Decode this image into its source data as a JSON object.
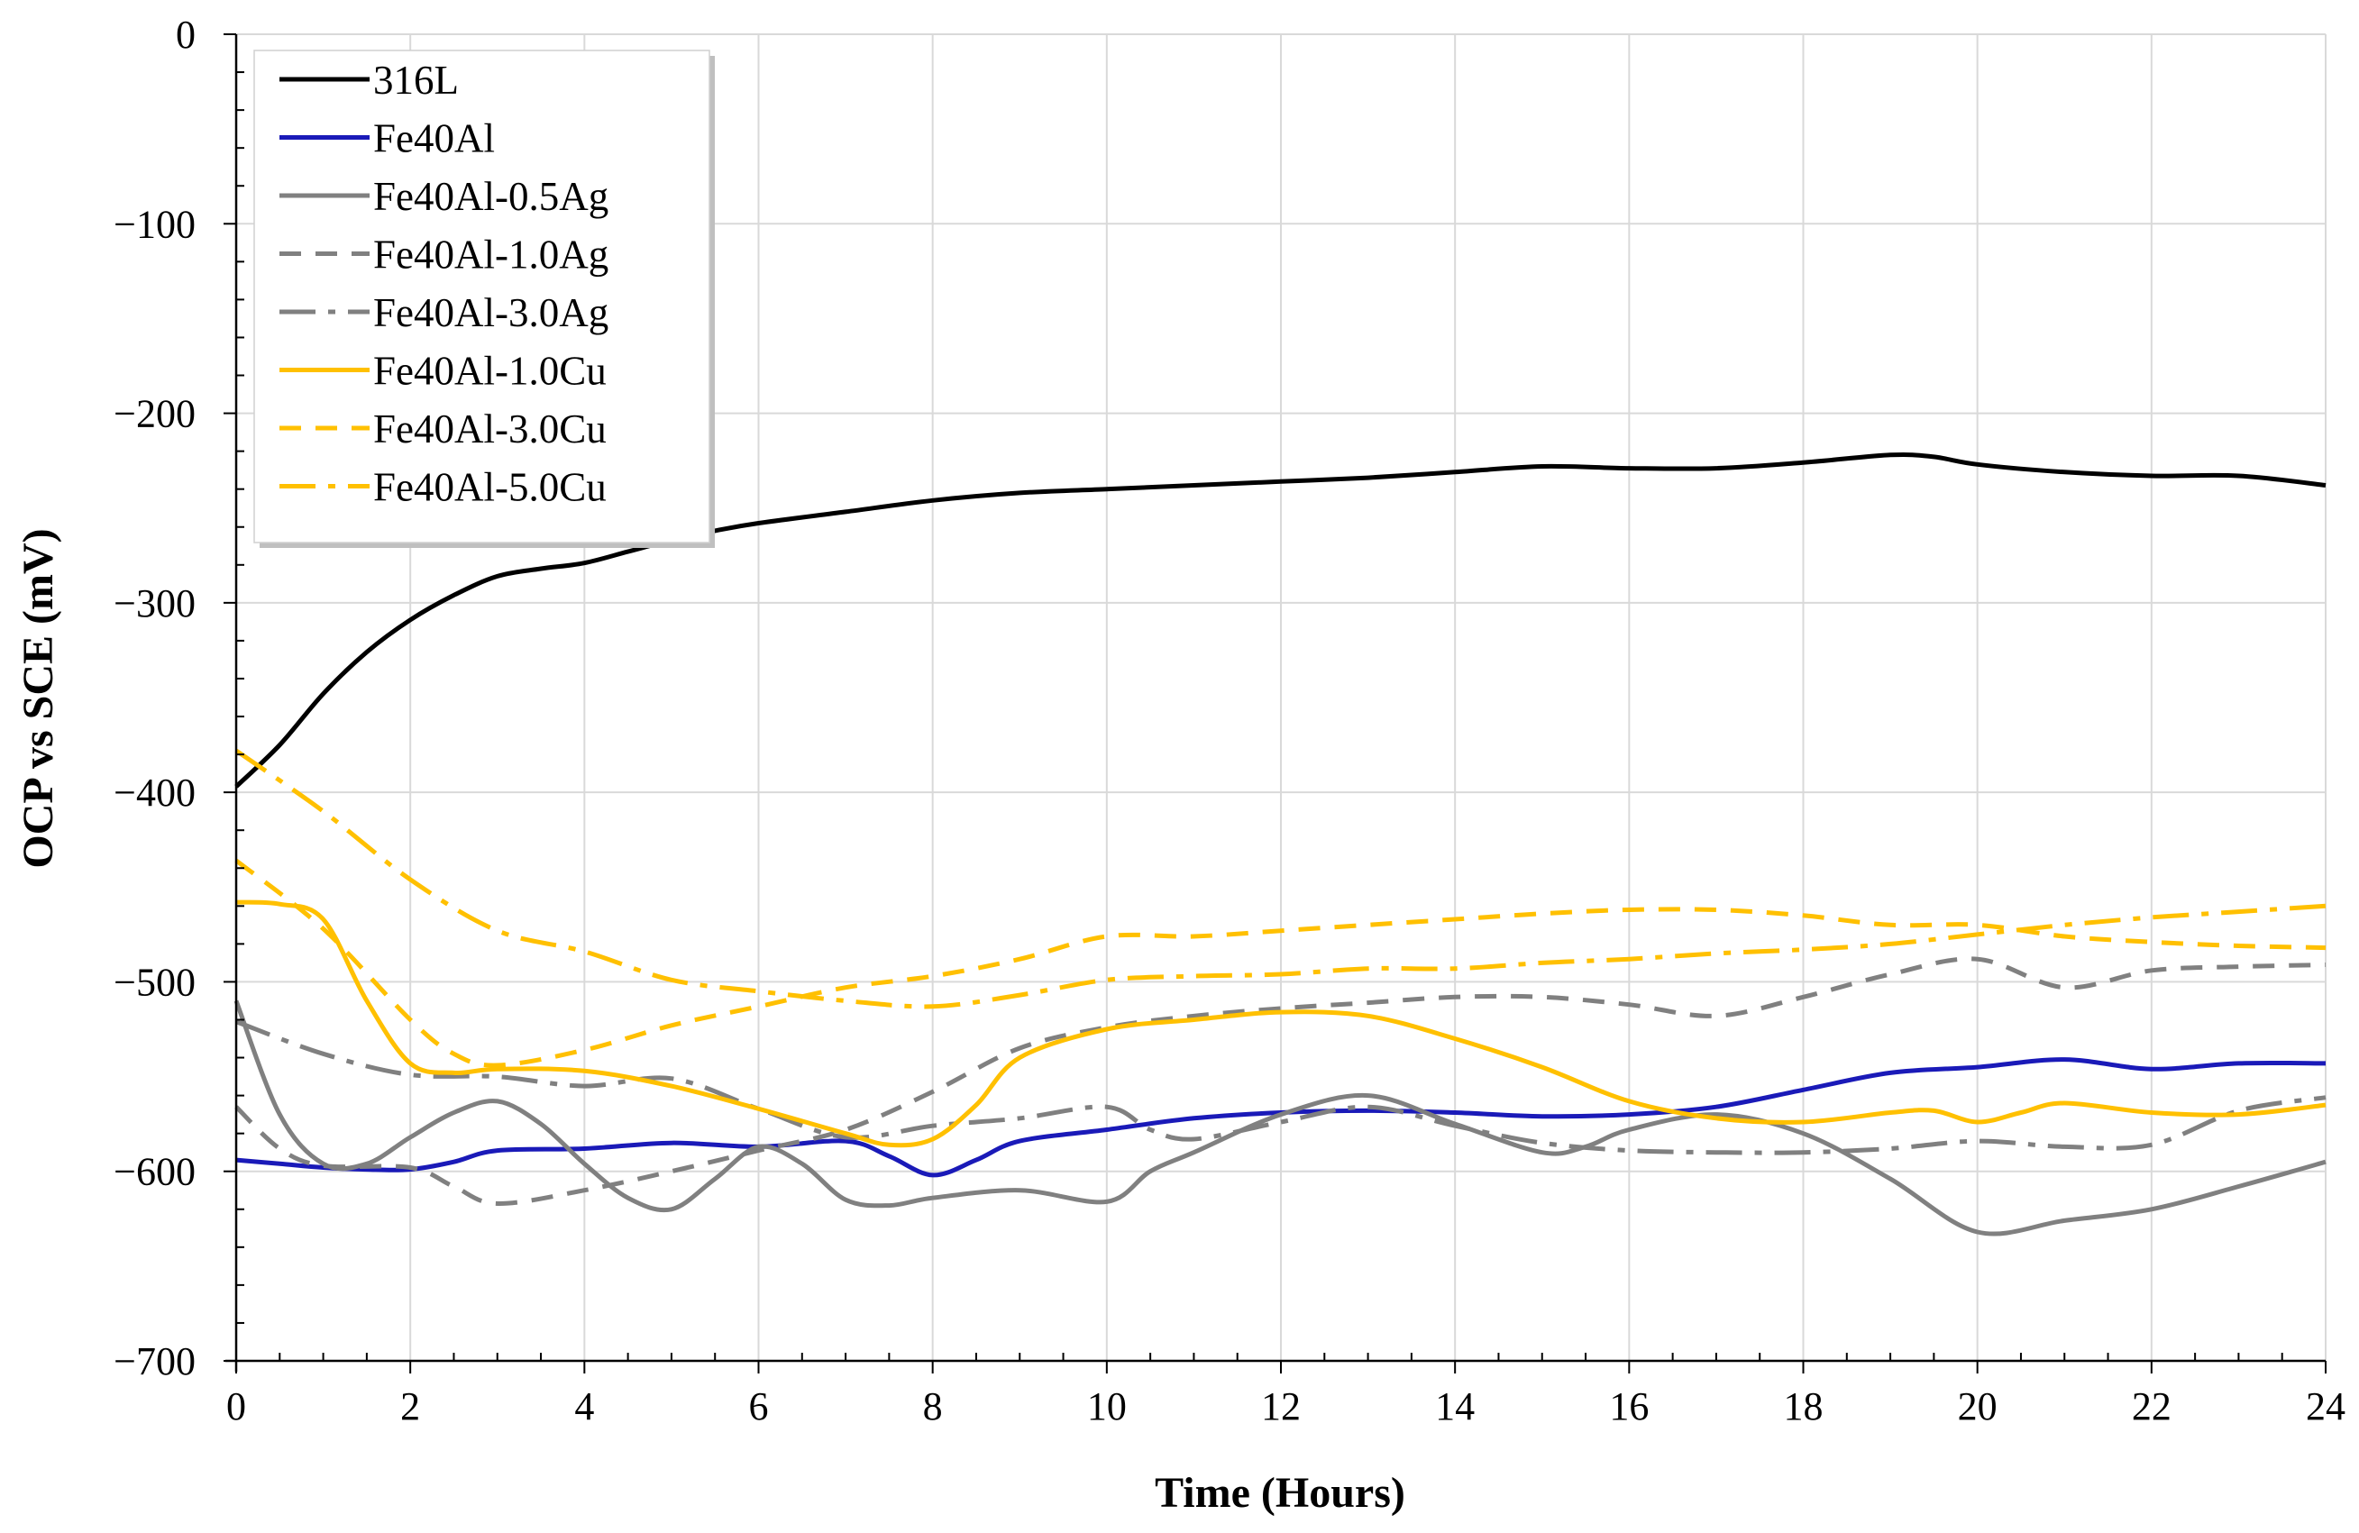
{
  "chart_data": {
    "type": "line",
    "title": "",
    "xlabel": "Time (Hours)",
    "ylabel": "OCP vs SCE (mV)",
    "xlim": [
      0,
      24
    ],
    "ylim": [
      -700,
      0
    ],
    "x_ticks": [
      0,
      2,
      4,
      6,
      8,
      10,
      12,
      14,
      16,
      18,
      20,
      22,
      24
    ],
    "y_ticks": [
      0,
      -100,
      -200,
      -300,
      -400,
      -500,
      -600,
      -700
    ],
    "x_tick_labels": [
      "0",
      "2",
      "4",
      "6",
      "8",
      "10",
      "12",
      "14",
      "16",
      "18",
      "20",
      "22",
      "24"
    ],
    "y_tick_labels": [
      "0",
      "−100",
      "−200",
      "−300",
      "−400",
      "−500",
      "−600",
      "−700"
    ],
    "grid": true,
    "legend_position": "top-left",
    "series": [
      {
        "name": "316L",
        "color": "#000000",
        "dash": "solid",
        "points": [
          [
            0,
            -397
          ],
          [
            0.5,
            -375
          ],
          [
            1,
            -348
          ],
          [
            1.5,
            -326
          ],
          [
            2,
            -309
          ],
          [
            2.5,
            -296
          ],
          [
            3,
            -286
          ],
          [
            3.5,
            -282
          ],
          [
            4,
            -279
          ],
          [
            4.5,
            -273
          ],
          [
            5,
            -267
          ],
          [
            5.5,
            -262
          ],
          [
            6,
            -258
          ],
          [
            7,
            -252
          ],
          [
            8,
            -246
          ],
          [
            9,
            -242
          ],
          [
            10,
            -240
          ],
          [
            11,
            -238
          ],
          [
            12,
            -236
          ],
          [
            13,
            -234
          ],
          [
            14,
            -231
          ],
          [
            15,
            -228
          ],
          [
            16,
            -229
          ],
          [
            17,
            -229
          ],
          [
            18,
            -226
          ],
          [
            19,
            -222
          ],
          [
            19.5,
            -223
          ],
          [
            20,
            -227
          ],
          [
            21,
            -231
          ],
          [
            22,
            -233
          ],
          [
            23,
            -233
          ],
          [
            24,
            -238
          ]
        ]
      },
      {
        "name": "Fe40Al",
        "color": "#1a1ab8",
        "dash": "solid",
        "points": [
          [
            0,
            -594
          ],
          [
            0.5,
            -596
          ],
          [
            1,
            -598
          ],
          [
            1.5,
            -599
          ],
          [
            2,
            -599
          ],
          [
            2.5,
            -595
          ],
          [
            3,
            -589
          ],
          [
            4,
            -588
          ],
          [
            5,
            -585
          ],
          [
            6,
            -587
          ],
          [
            7,
            -584
          ],
          [
            7.5,
            -592
          ],
          [
            8,
            -602
          ],
          [
            8.5,
            -594
          ],
          [
            9,
            -584
          ],
          [
            10,
            -578
          ],
          [
            11,
            -572
          ],
          [
            12,
            -569
          ],
          [
            13,
            -568
          ],
          [
            14,
            -569
          ],
          [
            15,
            -571
          ],
          [
            16,
            -570
          ],
          [
            17,
            -566
          ],
          [
            18,
            -557
          ],
          [
            19,
            -548
          ],
          [
            20,
            -545
          ],
          [
            21,
            -541
          ],
          [
            22,
            -546
          ],
          [
            23,
            -543
          ],
          [
            24,
            -543
          ]
        ]
      },
      {
        "name": "Fe40Al-0.5Ag",
        "color": "#808080",
        "dash": "solid",
        "points": [
          [
            0,
            -510
          ],
          [
            0.5,
            -570
          ],
          [
            1,
            -596
          ],
          [
            1.5,
            -596
          ],
          [
            2,
            -582
          ],
          [
            2.5,
            -569
          ],
          [
            3,
            -563
          ],
          [
            3.5,
            -575
          ],
          [
            4,
            -596
          ],
          [
            4.5,
            -614
          ],
          [
            5,
            -620
          ],
          [
            5.5,
            -604
          ],
          [
            6,
            -587
          ],
          [
            6.5,
            -596
          ],
          [
            7,
            -615
          ],
          [
            7.5,
            -618
          ],
          [
            8,
            -614
          ],
          [
            9,
            -610
          ],
          [
            10,
            -616
          ],
          [
            10.5,
            -600
          ],
          [
            11,
            -590
          ],
          [
            12,
            -570
          ],
          [
            13,
            -560
          ],
          [
            14,
            -575
          ],
          [
            15,
            -590
          ],
          [
            15.5,
            -587
          ],
          [
            16,
            -578
          ],
          [
            17,
            -570
          ],
          [
            18,
            -580
          ],
          [
            19,
            -604
          ],
          [
            20,
            -632
          ],
          [
            21,
            -626
          ],
          [
            22,
            -620
          ],
          [
            23,
            -608
          ],
          [
            24,
            -595
          ]
        ]
      },
      {
        "name": "Fe40Al-1.0Ag",
        "color": "#808080",
        "dash": "dash",
        "points": [
          [
            0,
            -566
          ],
          [
            0.5,
            -588
          ],
          [
            1,
            -597
          ],
          [
            2,
            -598
          ],
          [
            2.5,
            -608
          ],
          [
            3,
            -617
          ],
          [
            4,
            -610
          ],
          [
            5,
            -600
          ],
          [
            6,
            -589
          ],
          [
            7,
            -578
          ],
          [
            8,
            -558
          ],
          [
            9,
            -535
          ],
          [
            10,
            -524
          ],
          [
            11,
            -518
          ],
          [
            12,
            -514
          ],
          [
            13,
            -511
          ],
          [
            14,
            -508
          ],
          [
            15,
            -508
          ],
          [
            16,
            -512
          ],
          [
            17,
            -518
          ],
          [
            18,
            -508
          ],
          [
            19,
            -496
          ],
          [
            20,
            -488
          ],
          [
            21,
            -503
          ],
          [
            22,
            -494
          ],
          [
            23,
            -492
          ],
          [
            24,
            -491
          ]
        ]
      },
      {
        "name": "Fe40Al-3.0Ag",
        "color": "#808080",
        "dash": "dashdot",
        "points": [
          [
            0,
            -521
          ],
          [
            1,
            -538
          ],
          [
            2,
            -549
          ],
          [
            3,
            -550
          ],
          [
            4,
            -555
          ],
          [
            5,
            -551
          ],
          [
            6,
            -567
          ],
          [
            7,
            -582
          ],
          [
            8,
            -576
          ],
          [
            9,
            -572
          ],
          [
            10,
            -566
          ],
          [
            10.5,
            -578
          ],
          [
            11,
            -583
          ],
          [
            12,
            -574
          ],
          [
            13,
            -566
          ],
          [
            14,
            -576
          ],
          [
            15,
            -585
          ],
          [
            16,
            -589
          ],
          [
            17,
            -590
          ],
          [
            18,
            -590
          ],
          [
            19,
            -588
          ],
          [
            20,
            -584
          ],
          [
            21,
            -587
          ],
          [
            22,
            -586
          ],
          [
            23,
            -568
          ],
          [
            24,
            -561
          ]
        ]
      },
      {
        "name": "Fe40Al-1.0Cu",
        "color": "#ffc000",
        "dash": "solid",
        "points": [
          [
            0,
            -458
          ],
          [
            0.5,
            -459
          ],
          [
            1,
            -467
          ],
          [
            1.5,
            -510
          ],
          [
            2,
            -543
          ],
          [
            2.5,
            -548
          ],
          [
            3,
            -546
          ],
          [
            4,
            -547
          ],
          [
            5,
            -555
          ],
          [
            6,
            -567
          ],
          [
            7,
            -580
          ],
          [
            7.5,
            -586
          ],
          [
            8,
            -583
          ],
          [
            8.5,
            -565
          ],
          [
            9,
            -540
          ],
          [
            10,
            -525
          ],
          [
            11,
            -520
          ],
          [
            12,
            -516
          ],
          [
            13,
            -518
          ],
          [
            14,
            -530
          ],
          [
            15,
            -545
          ],
          [
            16,
            -563
          ],
          [
            17,
            -572
          ],
          [
            18,
            -574
          ],
          [
            19,
            -569
          ],
          [
            19.5,
            -568
          ],
          [
            20,
            -574
          ],
          [
            20.5,
            -569
          ],
          [
            21,
            -564
          ],
          [
            22,
            -569
          ],
          [
            23,
            -570
          ],
          [
            24,
            -565
          ]
        ]
      },
      {
        "name": "Fe40Al-3.0Cu",
        "color": "#ffc000",
        "dash": "dash",
        "points": [
          [
            0,
            -436
          ],
          [
            1,
            -472
          ],
          [
            2,
            -520
          ],
          [
            2.5,
            -538
          ],
          [
            3,
            -544
          ],
          [
            4,
            -536
          ],
          [
            5,
            -523
          ],
          [
            6,
            -513
          ],
          [
            7,
            -503
          ],
          [
            8,
            -497
          ],
          [
            9,
            -488
          ],
          [
            10,
            -476
          ],
          [
            11,
            -476
          ],
          [
            12,
            -473
          ],
          [
            13,
            -470
          ],
          [
            14,
            -467
          ],
          [
            15,
            -464
          ],
          [
            16,
            -462
          ],
          [
            17,
            -462
          ],
          [
            18,
            -465
          ],
          [
            19,
            -470
          ],
          [
            20,
            -470
          ],
          [
            21,
            -476
          ],
          [
            22,
            -479
          ],
          [
            23,
            -481
          ],
          [
            24,
            -482
          ]
        ]
      },
      {
        "name": "Fe40Al-5.0Cu",
        "color": "#ffc000",
        "dash": "dashdot",
        "points": [
          [
            0,
            -378
          ],
          [
            1,
            -410
          ],
          [
            2,
            -446
          ],
          [
            3,
            -473
          ],
          [
            4,
            -484
          ],
          [
            5,
            -499
          ],
          [
            6,
            -505
          ],
          [
            7,
            -510
          ],
          [
            8,
            -513
          ],
          [
            9,
            -507
          ],
          [
            10,
            -499
          ],
          [
            11,
            -497
          ],
          [
            12,
            -496
          ],
          [
            13,
            -493
          ],
          [
            14,
            -493
          ],
          [
            15,
            -490
          ],
          [
            16,
            -488
          ],
          [
            17,
            -485
          ],
          [
            18,
            -483
          ],
          [
            19,
            -480
          ],
          [
            20,
            -475
          ],
          [
            21,
            -470
          ],
          [
            22,
            -466
          ],
          [
            23,
            -463
          ],
          [
            24,
            -460
          ]
        ]
      }
    ]
  }
}
